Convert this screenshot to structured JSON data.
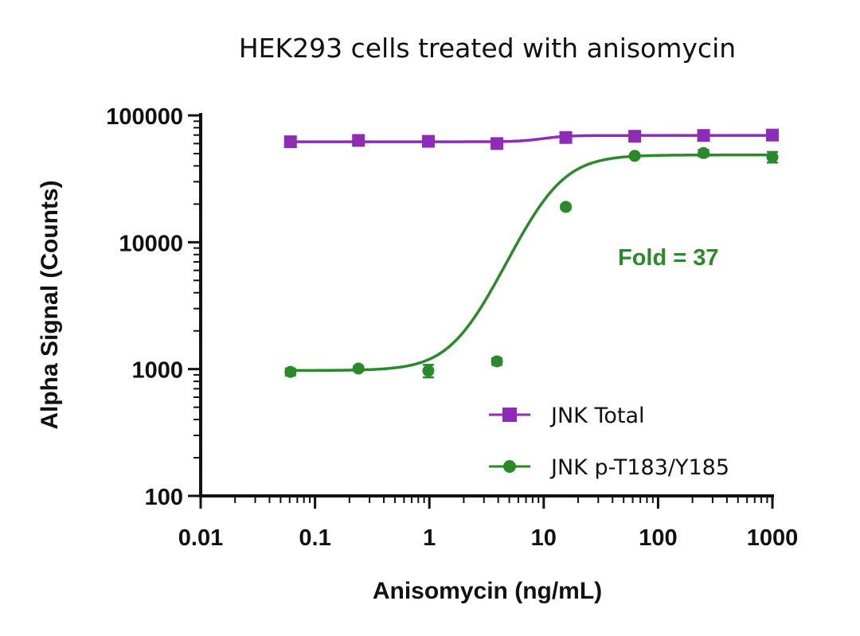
{
  "chart_data": {
    "type": "line",
    "title": "HEK293 cells treated with anisomycin",
    "xlabel": "Anisomycin (ng/mL)",
    "ylabel": "Alpha Signal (Counts)",
    "x_scale": "log",
    "y_scale": "log",
    "xlim": [
      0.01,
      1000
    ],
    "ylim": [
      100,
      100000
    ],
    "x_ticks": [
      0.01,
      0.1,
      1,
      10,
      100,
      1000
    ],
    "x_tick_labels": [
      "0.01",
      "0.1",
      "1",
      "10",
      "100",
      "1000"
    ],
    "y_ticks": [
      100,
      1000,
      10000,
      100000
    ],
    "y_tick_labels": [
      "100",
      "1000",
      "10000",
      "100000"
    ],
    "grid": false,
    "legend_position": "bottom-right",
    "series": [
      {
        "name": "JNK Total",
        "color": "#8e2bb8",
        "marker": "square",
        "x": [
          0.061,
          0.24,
          0.98,
          3.9,
          15.6,
          62.5,
          250,
          1000
        ],
        "y": [
          62000,
          63500,
          62500,
          60000,
          67000,
          68500,
          69500,
          70000
        ],
        "error": [
          2000,
          1800,
          1800,
          2500,
          2500,
          1500,
          1800,
          2000
        ]
      },
      {
        "name": "JNK p-T183/Y185",
        "color": "#2a8a2a",
        "marker": "circle",
        "x": [
          0.061,
          0.24,
          0.98,
          3.9,
          15.6,
          62.5,
          250,
          1000
        ],
        "y": [
          950,
          1010,
          970,
          1150,
          19000,
          48000,
          50500,
          47000
        ],
        "error": [
          60,
          40,
          110,
          70,
          800,
          1500,
          3000,
          4500
        ]
      }
    ],
    "annotations": [
      {
        "text": "Fold = 37",
        "color": "#2a8a2a"
      }
    ]
  }
}
